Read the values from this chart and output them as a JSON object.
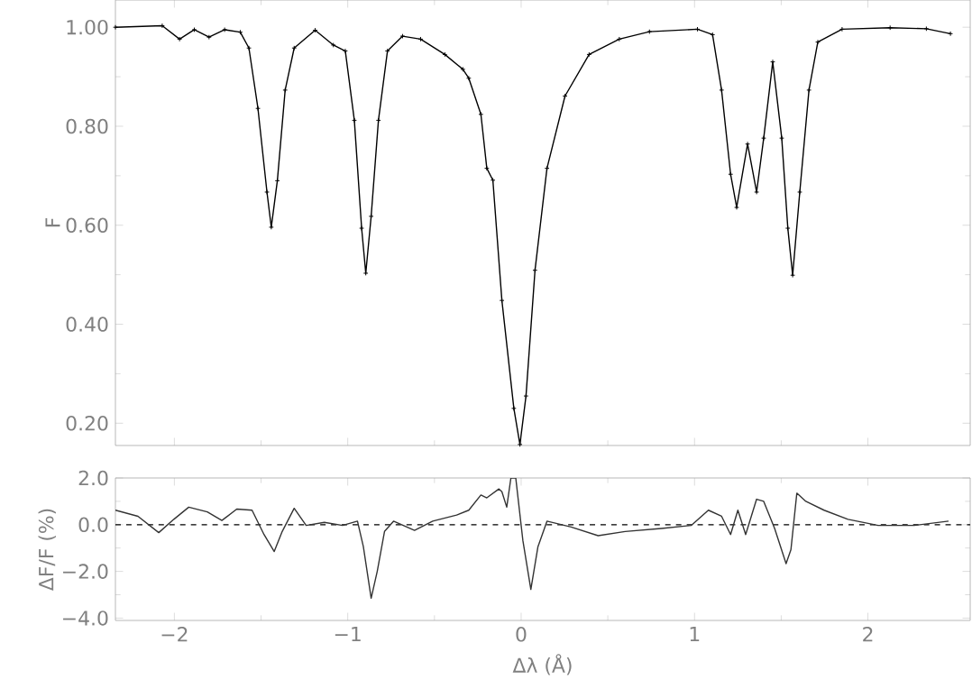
{
  "chart_data": [
    {
      "type": "line",
      "ylabel": "F",
      "marker": "cross",
      "line_style": "solid",
      "tick_labels": "y",
      "xlim": [
        -2.34,
        2.59
      ],
      "ylim": [
        0.155,
        1.055
      ],
      "xticks": [
        -2,
        -1,
        0,
        1,
        2
      ],
      "yticks": [
        {
          "value": 0.2,
          "label": "0.20"
        },
        {
          "value": 0.4,
          "label": "0.40"
        },
        {
          "value": 0.6,
          "label": "0.60"
        },
        {
          "value": 0.8,
          "label": "0.80"
        },
        {
          "value": 1.0,
          "label": "1.00"
        }
      ],
      "series": [
        {
          "color": "#000000",
          "x": [
            -2.34,
            -2.07,
            -1.97,
            -1.885,
            -1.8,
            -1.71,
            -1.62,
            -1.57,
            -1.518,
            -1.466,
            -1.441,
            -1.406,
            -1.361,
            -1.309,
            -1.188,
            -1.083,
            -1.014,
            -0.962,
            -0.92,
            -0.896,
            -0.865,
            -0.823,
            -0.771,
            -0.684,
            -0.58,
            -0.44,
            -0.336,
            -0.302,
            -0.232,
            -0.198,
            -0.163,
            -0.111,
            -0.042,
            -0.007,
            0.028,
            0.08,
            0.149,
            0.253,
            0.392,
            0.566,
            0.74,
            1.017,
            1.104,
            1.156,
            1.208,
            1.243,
            1.306,
            1.358,
            1.399,
            1.451,
            1.503,
            1.538,
            1.566,
            1.607,
            1.66,
            1.711,
            1.851,
            2.128,
            2.337,
            2.476
          ],
          "values": [
            1.0,
            1.003,
            0.976,
            0.995,
            0.98,
            0.995,
            0.99,
            0.958,
            0.836,
            0.667,
            0.596,
            0.69,
            0.873,
            0.958,
            0.994,
            0.964,
            0.952,
            0.812,
            0.594,
            0.503,
            0.618,
            0.812,
            0.952,
            0.982,
            0.976,
            0.945,
            0.915,
            0.897,
            0.824,
            0.715,
            0.691,
            0.448,
            0.23,
            0.157,
            0.255,
            0.509,
            0.715,
            0.861,
            0.945,
            0.976,
            0.991,
            0.996,
            0.985,
            0.873,
            0.703,
            0.636,
            0.764,
            0.667,
            0.776,
            0.93,
            0.776,
            0.594,
            0.499,
            0.667,
            0.873,
            0.97,
            0.996,
            0.999,
            0.997,
            0.987
          ]
        }
      ]
    },
    {
      "type": "line",
      "xlabel": "Δλ (Å)",
      "ylabel": "ΔF/F (%)",
      "marker": "none",
      "line_style": "solid",
      "xlim": [
        -2.34,
        2.59
      ],
      "ylim": [
        -4.1,
        2.0
      ],
      "xticks": [
        {
          "value": -2,
          "label": "−2"
        },
        {
          "value": -1,
          "label": "−1"
        },
        0,
        1,
        2
      ],
      "yticks": [
        {
          "value": -4,
          "label": "−4.0"
        },
        {
          "value": -2,
          "label": "−2.0"
        },
        {
          "value": 0,
          "label": "0.0"
        },
        {
          "value": 2,
          "label": "2.0"
        }
      ],
      "ref_lines": [
        {
          "axis": "y",
          "value": 0,
          "line_style": "dashed",
          "color": "#000000"
        }
      ],
      "series": [
        {
          "color": "#333333",
          "x": [
            -2.34,
            -2.21,
            -2.09,
            -2.003,
            -1.917,
            -1.81,
            -1.726,
            -1.64,
            -1.552,
            -1.483,
            -1.424,
            -1.378,
            -1.309,
            -1.24,
            -1.135,
            -1.03,
            -0.944,
            -0.91,
            -0.865,
            -0.83,
            -0.788,
            -0.736,
            -0.615,
            -0.51,
            -0.372,
            -0.302,
            -0.232,
            -0.198,
            -0.128,
            -0.111,
            -0.083,
            -0.059,
            -0.031,
            0.01,
            0.056,
            0.097,
            0.149,
            0.288,
            0.444,
            0.6,
            0.809,
            0.982,
            1.08,
            1.156,
            1.208,
            1.25,
            1.295,
            1.358,
            1.399,
            1.462,
            1.528,
            1.556,
            1.59,
            1.642,
            1.747,
            1.885,
            2.059,
            2.267,
            2.465
          ],
          "values": [
            0.62,
            0.36,
            -0.34,
            0.23,
            0.75,
            0.55,
            0.18,
            0.67,
            0.62,
            -0.42,
            -1.15,
            -0.29,
            0.7,
            -0.03,
            0.1,
            -0.03,
            0.15,
            -0.94,
            -3.15,
            -2.0,
            -0.29,
            0.15,
            -0.24,
            0.15,
            0.41,
            0.62,
            1.27,
            1.15,
            1.53,
            1.41,
            0.75,
            2.0,
            2.0,
            -0.68,
            -2.77,
            -0.94,
            0.15,
            -0.1,
            -0.47,
            -0.29,
            -0.16,
            -0.03,
            0.62,
            0.36,
            -0.42,
            0.62,
            -0.42,
            1.09,
            1.0,
            -0.16,
            -1.67,
            -1.07,
            1.35,
            1.0,
            0.62,
            0.23,
            -0.03,
            -0.03,
            0.15
          ]
        }
      ]
    }
  ]
}
